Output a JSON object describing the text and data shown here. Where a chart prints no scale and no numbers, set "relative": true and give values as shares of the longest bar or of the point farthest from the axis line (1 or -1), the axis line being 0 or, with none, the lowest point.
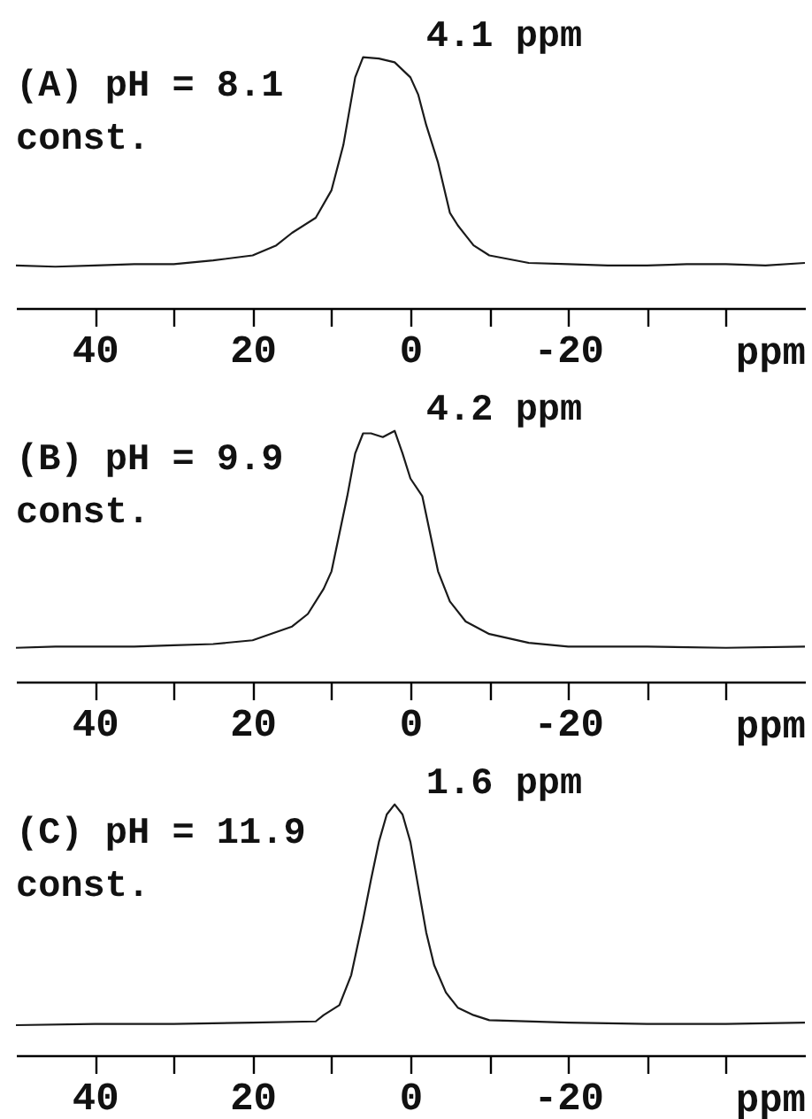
{
  "chart_data": [
    {
      "type": "line",
      "relative": true,
      "xlabel": "ppm",
      "annotations": [
        "(A) pH = 8.1",
        "const.",
        "4.1 ppm"
      ],
      "xlim": [
        50,
        -50
      ],
      "xticks": [
        40,
        {
          "value": 30,
          "label": null
        },
        20,
        {
          "value": 10,
          "label": null
        },
        0,
        {
          "value": -10,
          "label": null
        },
        -20,
        {
          "value": -30,
          "label": null
        },
        {
          "value": -40,
          "label": null
        }
      ],
      "tick_labels": "x",
      "marker": "none",
      "line_style": "solid",
      "x": [
        50,
        45,
        40,
        35,
        30,
        25,
        20,
        17,
        15,
        12,
        10,
        8.5,
        7,
        6,
        4,
        2,
        0,
        -1,
        -2,
        -3.5,
        -5,
        -6,
        -7,
        -8,
        -10,
        -15,
        -20,
        -25,
        -30,
        -35,
        -40,
        -45,
        -50
      ],
      "series": [
        {
          "color": "#1a1a1a",
          "values": [
            0.17,
            0.165,
            0.17,
            0.175,
            0.175,
            0.19,
            0.21,
            0.25,
            0.3,
            0.36,
            0.47,
            0.65,
            0.92,
            1.0,
            0.995,
            0.98,
            0.92,
            0.85,
            0.73,
            0.58,
            0.38,
            0.33,
            0.29,
            0.25,
            0.21,
            0.18,
            0.175,
            0.17,
            0.17,
            0.175,
            0.175,
            0.17,
            0.18
          ]
        }
      ]
    },
    {
      "type": "line",
      "relative": true,
      "xlabel": "ppm",
      "annotations": [
        "(B) pH = 9.9",
        "const.",
        "4.2 ppm"
      ],
      "xlim": [
        50,
        -50
      ],
      "xticks": [
        40,
        {
          "value": 30,
          "label": null
        },
        20,
        {
          "value": 10,
          "label": null
        },
        0,
        {
          "value": -10,
          "label": null
        },
        -20,
        {
          "value": -30,
          "label": null
        },
        {
          "value": -40,
          "label": null
        }
      ],
      "tick_labels": "x",
      "marker": "none",
      "line_style": "solid",
      "x": [
        50,
        45,
        40,
        35,
        30,
        25,
        20,
        15,
        13,
        11,
        10,
        9,
        8,
        7,
        6,
        5,
        3.5,
        2,
        1,
        0,
        -1.5,
        -2.5,
        -3.5,
        -5,
        -7,
        -10,
        -15,
        -20,
        -30,
        -40,
        -50
      ],
      "series": [
        {
          "color": "#1a1a1a",
          "values": [
            0.135,
            0.14,
            0.14,
            0.14,
            0.145,
            0.15,
            0.165,
            0.22,
            0.27,
            0.37,
            0.44,
            0.59,
            0.74,
            0.91,
            0.99,
            0.99,
            0.975,
            1.0,
            0.91,
            0.81,
            0.74,
            0.59,
            0.44,
            0.32,
            0.24,
            0.19,
            0.155,
            0.14,
            0.14,
            0.135,
            0.14
          ]
        }
      ]
    },
    {
      "type": "line",
      "relative": true,
      "xlabel": "ppm",
      "annotations": [
        "(C) pH = 11.9",
        "const.",
        "1.6 ppm"
      ],
      "xlim": [
        50,
        -50
      ],
      "xticks": [
        40,
        {
          "value": 30,
          "label": null
        },
        20,
        {
          "value": 10,
          "label": null
        },
        0,
        {
          "value": -10,
          "label": null
        },
        -20,
        {
          "value": -30,
          "label": null
        },
        {
          "value": -40,
          "label": null
        }
      ],
      "tick_labels": "x",
      "marker": "none",
      "line_style": "solid",
      "x": [
        50,
        40,
        30,
        20,
        12,
        11,
        9,
        7.5,
        6,
        5,
        4,
        3,
        2,
        1,
        0,
        -1,
        -2,
        -3,
        -4.5,
        -6,
        -8,
        -10,
        -20,
        -30,
        -40,
        -50
      ],
      "series": [
        {
          "color": "#1a1a1a",
          "values": [
            0.12,
            0.125,
            0.125,
            0.13,
            0.135,
            0.16,
            0.2,
            0.32,
            0.54,
            0.7,
            0.85,
            0.96,
            1.0,
            0.96,
            0.85,
            0.67,
            0.49,
            0.36,
            0.25,
            0.19,
            0.16,
            0.14,
            0.13,
            0.125,
            0.125,
            0.13
          ]
        }
      ]
    }
  ]
}
